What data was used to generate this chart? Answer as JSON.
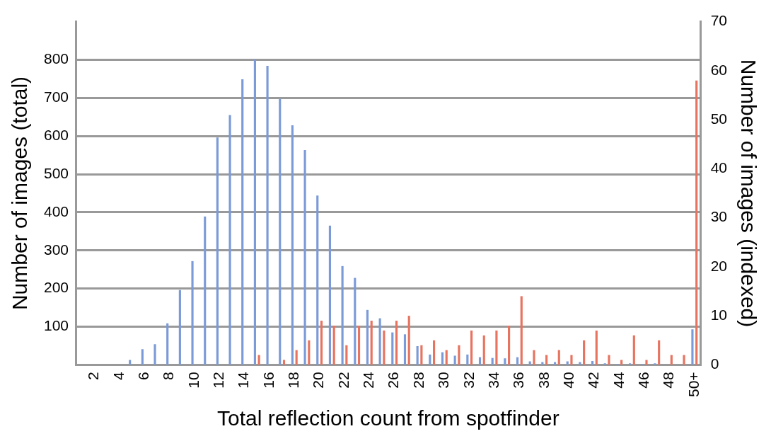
{
  "chart_data": {
    "type": "bar",
    "xlabel": "Total reflection count from spotfinder",
    "ylabel": "Number of images (total)",
    "y2label": "Number of images (indexed)",
    "categories": [
      null,
      "2",
      null,
      "4",
      null,
      "6",
      null,
      "8",
      null,
      "10",
      null,
      "12",
      null,
      "14",
      null,
      "16",
      null,
      "18",
      null,
      "20",
      null,
      "22",
      null,
      "24",
      null,
      "26",
      null,
      "28",
      null,
      "30",
      null,
      "32",
      null,
      "34",
      null,
      "36",
      null,
      "38",
      null,
      "40",
      null,
      "42",
      null,
      "44",
      null,
      "46",
      null,
      "48",
      null,
      "50+"
    ],
    "series": [
      {
        "color": "#7b9bd8",
        "values": [
          0,
          0,
          0,
          0,
          13,
          41,
          54,
          109,
          196,
          272,
          389,
          596,
          655,
          749,
          801,
          784,
          698,
          628,
          563,
          444,
          365,
          259,
          228,
          144,
          122,
          85,
          80,
          49,
          27,
          33,
          24,
          27,
          20,
          18,
          17,
          20,
          9,
          7,
          7,
          9,
          7,
          10,
          4,
          2,
          4,
          2,
          4,
          null,
          null,
          93
        ]
      },
      {
        "color": "#e8735f",
        "axis": "y2",
        "values": [
          0,
          0,
          0,
          0,
          0,
          0,
          0,
          0,
          0,
          0,
          0,
          0,
          0,
          0,
          2,
          0,
          1,
          3,
          5,
          9,
          8,
          4,
          8,
          9,
          7,
          9,
          10,
          4,
          5,
          3,
          4,
          7,
          6,
          7,
          8,
          14,
          3,
          2,
          3,
          2,
          5,
          7,
          2,
          1,
          6,
          1,
          5,
          2,
          2,
          58
        ]
      }
    ],
    "ylim": [
      0,
      900
    ],
    "yticks": [
      100,
      200,
      300,
      400,
      500,
      600,
      700,
      800
    ],
    "y2lim": [
      0,
      70
    ],
    "y2ticks": [
      0,
      10,
      20,
      30,
      40,
      50,
      60,
      70
    ],
    "grid": "y"
  }
}
